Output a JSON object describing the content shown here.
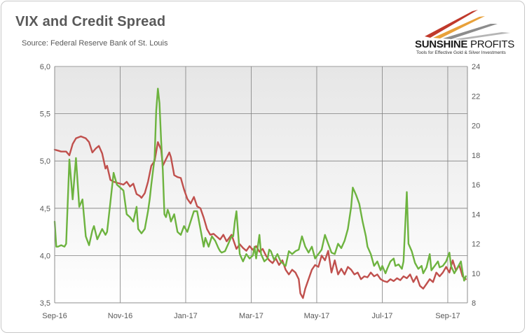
{
  "header": {
    "title": "VIX and Credit Spread",
    "subtitle": "Source: Federal Reserve Bank of St. Louis"
  },
  "logo": {
    "name_bold": "SUNSHINE",
    "name_light": " PROFITS",
    "tagline": "Tools for Effective Gold & Silver Investments",
    "colors": [
      "#c0392b",
      "#e8a13a",
      "#6b6b6b"
    ]
  },
  "chart_data": {
    "type": "line",
    "grid": true,
    "legend": "none",
    "x_tick_labels": [
      "Sep-16",
      "Nov-16",
      "Jan-17",
      "Mar-17",
      "May-17",
      "Jul-17",
      "Sep-17"
    ],
    "y_left_ticks": [
      "3,5",
      "4,0",
      "4,5",
      "5,0",
      "5,5",
      "6,0"
    ],
    "y_right_ticks": [
      "8",
      "10",
      "12",
      "14",
      "16",
      "18",
      "20",
      "22",
      "24"
    ],
    "ylim_left": [
      3.5,
      6.0
    ],
    "ylim_right": [
      8,
      24
    ],
    "x_range_months": [
      0,
      12.6
    ],
    "series": [
      {
        "axis": "left",
        "color": "#c0504d",
        "points": [
          [
            0,
            5.12
          ],
          [
            0.1,
            5.11
          ],
          [
            0.2,
            5.1
          ],
          [
            0.35,
            5.1
          ],
          [
            0.45,
            5.06
          ],
          [
            0.55,
            5.18
          ],
          [
            0.65,
            5.24
          ],
          [
            0.8,
            5.26
          ],
          [
            0.95,
            5.24
          ],
          [
            1.05,
            5.2
          ],
          [
            1.15,
            5.09
          ],
          [
            1.25,
            5.13
          ],
          [
            1.35,
            5.16
          ],
          [
            1.45,
            5.08
          ],
          [
            1.55,
            4.92
          ],
          [
            1.6,
            4.95
          ],
          [
            1.7,
            4.8
          ],
          [
            1.8,
            4.78
          ],
          [
            1.9,
            4.77
          ],
          [
            2.0,
            4.76
          ],
          [
            2.1,
            4.75
          ],
          [
            2.2,
            4.78
          ],
          [
            2.3,
            4.73
          ],
          [
            2.4,
            4.76
          ],
          [
            2.5,
            4.65
          ],
          [
            2.6,
            4.63
          ],
          [
            2.65,
            4.61
          ],
          [
            2.75,
            4.66
          ],
          [
            2.85,
            4.78
          ],
          [
            2.95,
            4.95
          ],
          [
            3.05,
            5.0
          ],
          [
            3.15,
            5.2
          ],
          [
            3.25,
            5.12
          ],
          [
            3.3,
            4.95
          ],
          [
            3.4,
            5.02
          ],
          [
            3.5,
            5.09
          ],
          [
            3.55,
            5.04
          ],
          [
            3.65,
            4.85
          ],
          [
            3.75,
            4.83
          ],
          [
            3.85,
            4.82
          ],
          [
            3.95,
            4.7
          ],
          [
            4.05,
            4.6
          ],
          [
            4.15,
            4.55
          ],
          [
            4.25,
            4.62
          ],
          [
            4.35,
            4.52
          ],
          [
            4.45,
            4.5
          ],
          [
            4.55,
            4.4
          ],
          [
            4.65,
            4.28
          ],
          [
            4.75,
            4.22
          ],
          [
            4.85,
            4.23
          ],
          [
            4.95,
            4.2
          ],
          [
            5.05,
            4.17
          ],
          [
            5.15,
            4.22
          ],
          [
            5.25,
            4.15
          ],
          [
            5.4,
            4.22
          ],
          [
            5.55,
            4.07
          ],
          [
            5.65,
            4.12
          ],
          [
            5.75,
            4.08
          ],
          [
            5.85,
            4.05
          ],
          [
            5.95,
            4.1
          ],
          [
            6.05,
            4.06
          ],
          [
            6.15,
            4.1
          ],
          [
            6.25,
            4.04
          ],
          [
            6.35,
            4.07
          ],
          [
            6.45,
            4.0
          ],
          [
            6.55,
            3.95
          ],
          [
            6.65,
            3.92
          ],
          [
            6.75,
            3.97
          ],
          [
            6.85,
            3.9
          ],
          [
            6.95,
            3.95
          ],
          [
            7.05,
            3.85
          ],
          [
            7.15,
            3.8
          ],
          [
            7.25,
            3.85
          ],
          [
            7.35,
            3.82
          ],
          [
            7.45,
            3.75
          ],
          [
            7.5,
            3.6
          ],
          [
            7.58,
            3.55
          ],
          [
            7.65,
            3.65
          ],
          [
            7.75,
            3.75
          ],
          [
            7.85,
            3.85
          ],
          [
            7.95,
            3.9
          ],
          [
            8.05,
            3.88
          ],
          [
            8.15,
            4.0
          ],
          [
            8.25,
            3.95
          ],
          [
            8.35,
            4.05
          ],
          [
            8.45,
            3.82
          ],
          [
            8.55,
            3.95
          ],
          [
            8.65,
            3.8
          ],
          [
            8.75,
            3.86
          ],
          [
            8.85,
            3.8
          ],
          [
            8.95,
            3.88
          ],
          [
            9.05,
            3.85
          ],
          [
            9.15,
            3.8
          ],
          [
            9.25,
            3.82
          ],
          [
            9.35,
            3.75
          ],
          [
            9.45,
            3.78
          ],
          [
            9.55,
            3.77
          ],
          [
            9.65,
            3.82
          ],
          [
            9.75,
            3.78
          ],
          [
            9.85,
            3.8
          ],
          [
            9.95,
            3.75
          ],
          [
            10.05,
            3.73
          ],
          [
            10.15,
            3.72
          ],
          [
            10.25,
            3.75
          ],
          [
            10.35,
            3.73
          ],
          [
            10.45,
            3.76
          ],
          [
            10.55,
            3.74
          ],
          [
            10.65,
            3.78
          ],
          [
            10.75,
            3.76
          ],
          [
            10.85,
            3.8
          ],
          [
            10.95,
            3.72
          ],
          [
            11.05,
            3.78
          ],
          [
            11.15,
            3.68
          ],
          [
            11.25,
            3.65
          ],
          [
            11.35,
            3.7
          ],
          [
            11.45,
            3.75
          ],
          [
            11.55,
            3.72
          ],
          [
            11.65,
            3.82
          ],
          [
            11.75,
            3.78
          ],
          [
            11.85,
            3.82
          ],
          [
            11.95,
            3.88
          ],
          [
            12.05,
            3.82
          ],
          [
            12.15,
            3.95
          ],
          [
            12.25,
            3.84
          ],
          [
            12.35,
            3.9
          ],
          [
            12.45,
            3.78
          ],
          [
            12.55,
            3.75
          ]
        ]
      },
      {
        "axis": "right",
        "color": "#6db33f",
        "points": [
          [
            0,
            13.5
          ],
          [
            0.05,
            11.8
          ],
          [
            0.1,
            11.8
          ],
          [
            0.2,
            11.9
          ],
          [
            0.3,
            11.8
          ],
          [
            0.35,
            12.0
          ],
          [
            0.45,
            17.7
          ],
          [
            0.55,
            15.0
          ],
          [
            0.65,
            17.8
          ],
          [
            0.75,
            14.5
          ],
          [
            0.85,
            15.0
          ],
          [
            0.95,
            12.5
          ],
          [
            1.05,
            11.9
          ],
          [
            1.15,
            12.9
          ],
          [
            1.2,
            13.2
          ],
          [
            1.3,
            12.3
          ],
          [
            1.45,
            13.0
          ],
          [
            1.55,
            12.6
          ],
          [
            1.6,
            12.8
          ],
          [
            1.7,
            14.8
          ],
          [
            1.8,
            16.8
          ],
          [
            1.9,
            16.0
          ],
          [
            2.0,
            15.8
          ],
          [
            2.1,
            15.6
          ],
          [
            2.2,
            14.0
          ],
          [
            2.3,
            13.8
          ],
          [
            2.4,
            13.5
          ],
          [
            2.5,
            14.5
          ],
          [
            2.55,
            13.0
          ],
          [
            2.65,
            12.7
          ],
          [
            2.75,
            13.0
          ],
          [
            2.85,
            14.2
          ],
          [
            2.9,
            15.0
          ],
          [
            2.95,
            16.0
          ],
          [
            3.05,
            17.8
          ],
          [
            3.1,
            21.0
          ],
          [
            3.15,
            22.5
          ],
          [
            3.2,
            21.5
          ],
          [
            3.25,
            19.0
          ],
          [
            3.3,
            17.0
          ],
          [
            3.35,
            14.0
          ],
          [
            3.4,
            13.8
          ],
          [
            3.45,
            14.3
          ],
          [
            3.5,
            14.0
          ],
          [
            3.55,
            13.5
          ],
          [
            3.65,
            14.0
          ],
          [
            3.75,
            12.8
          ],
          [
            3.85,
            12.6
          ],
          [
            3.95,
            13.2
          ],
          [
            4.05,
            12.8
          ],
          [
            4.15,
            13.5
          ],
          [
            4.25,
            14.2
          ],
          [
            4.35,
            14.2
          ],
          [
            4.45,
            13.0
          ],
          [
            4.55,
            11.8
          ],
          [
            4.6,
            12.4
          ],
          [
            4.7,
            11.8
          ],
          [
            4.8,
            12.5
          ],
          [
            4.9,
            12.2
          ],
          [
            5.0,
            11.7
          ],
          [
            5.05,
            11.5
          ],
          [
            5.1,
            11.4
          ],
          [
            5.2,
            11.5
          ],
          [
            5.3,
            12.0
          ],
          [
            5.4,
            12.5
          ],
          [
            5.45,
            12.5
          ],
          [
            5.5,
            13.5
          ],
          [
            5.55,
            14.2
          ],
          [
            5.65,
            11.3
          ],
          [
            5.75,
            10.8
          ],
          [
            5.85,
            11.3
          ],
          [
            5.95,
            11.0
          ],
          [
            6.05,
            11.2
          ],
          [
            6.1,
            11.8
          ],
          [
            6.15,
            11.0
          ],
          [
            6.25,
            12.6
          ],
          [
            6.3,
            11.3
          ],
          [
            6.4,
            10.8
          ],
          [
            6.5,
            11.0
          ],
          [
            6.55,
            11.6
          ],
          [
            6.6,
            11.5
          ],
          [
            6.7,
            10.9
          ],
          [
            6.8,
            11.3
          ],
          [
            6.9,
            10.8
          ],
          [
            7.0,
            10.6
          ],
          [
            7.05,
            10.5
          ],
          [
            7.15,
            11.5
          ],
          [
            7.25,
            11.3
          ],
          [
            7.35,
            11.5
          ],
          [
            7.45,
            11.6
          ],
          [
            7.55,
            12.5
          ],
          [
            7.65,
            11.8
          ],
          [
            7.75,
            11.4
          ],
          [
            7.85,
            11.8
          ],
          [
            7.95,
            11.0
          ],
          [
            8.05,
            11.3
          ],
          [
            8.15,
            11.6
          ],
          [
            8.25,
            12.6
          ],
          [
            8.35,
            12.0
          ],
          [
            8.45,
            11.4
          ],
          [
            8.55,
            11.3
          ],
          [
            8.65,
            12.0
          ],
          [
            8.75,
            11.7
          ],
          [
            8.85,
            12.2
          ],
          [
            8.95,
            13.0
          ],
          [
            9.05,
            14.5
          ],
          [
            9.1,
            15.8
          ],
          [
            9.2,
            15.3
          ],
          [
            9.3,
            14.7
          ],
          [
            9.4,
            13.5
          ],
          [
            9.5,
            12.5
          ],
          [
            9.55,
            11.8
          ],
          [
            9.65,
            11.3
          ],
          [
            9.75,
            10.5
          ],
          [
            9.85,
            10.8
          ],
          [
            9.95,
            10.2
          ],
          [
            10.0,
            10.5
          ],
          [
            10.1,
            10.0
          ],
          [
            10.15,
            10.3
          ],
          [
            10.25,
            10.8
          ],
          [
            10.35,
            11.0
          ],
          [
            10.4,
            10.5
          ],
          [
            10.5,
            10.6
          ],
          [
            10.6,
            10.3
          ],
          [
            10.65,
            10.8
          ],
          [
            10.75,
            15.5
          ],
          [
            10.8,
            12.0
          ],
          [
            10.9,
            11.5
          ],
          [
            11.0,
            10.7
          ],
          [
            11.1,
            10.3
          ],
          [
            11.2,
            10.5
          ],
          [
            11.25,
            10.0
          ],
          [
            11.35,
            10.4
          ],
          [
            11.45,
            11.3
          ],
          [
            11.5,
            10.2
          ],
          [
            11.6,
            10.5
          ],
          [
            11.7,
            10.8
          ],
          [
            11.75,
            10.4
          ],
          [
            11.85,
            10.5
          ],
          [
            11.95,
            10.8
          ],
          [
            12.05,
            11.4
          ],
          [
            12.1,
            10.5
          ],
          [
            12.2,
            10.0
          ],
          [
            12.3,
            10.4
          ],
          [
            12.4,
            10.8
          ],
          [
            12.45,
            10.1
          ],
          [
            12.5,
            9.5
          ],
          [
            12.55,
            9.8
          ]
        ]
      }
    ]
  }
}
